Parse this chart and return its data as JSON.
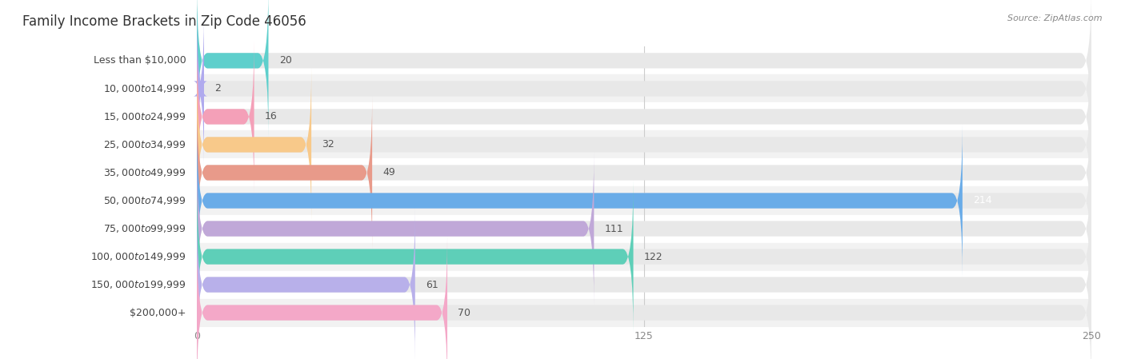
{
  "title": "Family Income Brackets in Zip Code 46056",
  "source": "Source: ZipAtlas.com",
  "categories": [
    "Less than $10,000",
    "$10,000 to $14,999",
    "$15,000 to $24,999",
    "$25,000 to $34,999",
    "$35,000 to $49,999",
    "$50,000 to $74,999",
    "$75,000 to $99,999",
    "$100,000 to $149,999",
    "$150,000 to $199,999",
    "$200,000+"
  ],
  "values": [
    20,
    2,
    16,
    32,
    49,
    214,
    111,
    122,
    61,
    70
  ],
  "bar_colors": [
    "#5ecfcc",
    "#b0aaee",
    "#f4a0b8",
    "#f8c98a",
    "#e89a8a",
    "#6aace8",
    "#c0a8d8",
    "#5ecfb8",
    "#b8b0ea",
    "#f4a8c8"
  ],
  "xlim": [
    0,
    250
  ],
  "xticks": [
    0,
    125,
    250
  ],
  "background_color": "#f7f7f7",
  "bar_background_color": "#e8e8e8",
  "row_background_colors": [
    "#ffffff",
    "#f2f2f2"
  ],
  "title_fontsize": 12,
  "label_fontsize": 9,
  "value_fontsize": 9
}
